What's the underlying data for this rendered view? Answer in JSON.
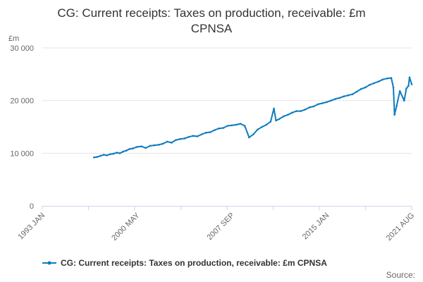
{
  "chart_data": {
    "type": "line",
    "title_lines": [
      "CG: Current receipts: Taxes on production, receivable: £m",
      "CPNSA"
    ],
    "y_unit_label": "£m",
    "yticks": [
      0,
      10000,
      20000,
      30000
    ],
    "ytick_labels": [
      "0",
      "10 000",
      "20 000",
      "30 000"
    ],
    "ylim": [
      0,
      30000
    ],
    "xticks": [
      "1993 JAN",
      "2000 MAY",
      "2007 SEP",
      "2015 JAN",
      "2021 AUG"
    ],
    "x_range": [
      "1993 JAN",
      "2021 AUG"
    ],
    "grid": "horizontal",
    "legend_position": "bottom",
    "source_label": "Source:",
    "color": "#0e7bbf",
    "series": [
      {
        "name": "CG: Current receipts: Taxes on production, receivable: £m CPNSA",
        "points": [
          [
            "1997 JAN",
            9200
          ],
          [
            "1997 APR",
            9300
          ],
          [
            "1997 JUL",
            9500
          ],
          [
            "1997 OCT",
            9700
          ],
          [
            "1998 JAN",
            9600
          ],
          [
            "1998 APR",
            9800
          ],
          [
            "1998 JUL",
            9900
          ],
          [
            "1998 OCT",
            10100
          ],
          [
            "1999 JAN",
            10000
          ],
          [
            "1999 APR",
            10300
          ],
          [
            "1999 JUL",
            10500
          ],
          [
            "1999 OCT",
            10800
          ],
          [
            "2000 JAN",
            10900
          ],
          [
            "2000 MAY",
            11200
          ],
          [
            "2000 SEP",
            11300
          ],
          [
            "2001 JAN",
            11000
          ],
          [
            "2001 MAY",
            11400
          ],
          [
            "2001 SEP",
            11500
          ],
          [
            "2002 JAN",
            11600
          ],
          [
            "2002 MAY",
            11800
          ],
          [
            "2002 SEP",
            12200
          ],
          [
            "2003 JAN",
            12000
          ],
          [
            "2003 MAY",
            12500
          ],
          [
            "2003 SEP",
            12700
          ],
          [
            "2004 JAN",
            12800
          ],
          [
            "2004 MAY",
            13100
          ],
          [
            "2004 SEP",
            13300
          ],
          [
            "2005 JAN",
            13200
          ],
          [
            "2005 MAY",
            13600
          ],
          [
            "2005 SEP",
            13900
          ],
          [
            "2006 JAN",
            14000
          ],
          [
            "2006 MAY",
            14400
          ],
          [
            "2006 SEP",
            14700
          ],
          [
            "2007 JAN",
            14800
          ],
          [
            "2007 MAY",
            15200
          ],
          [
            "2007 SEP",
            15300
          ],
          [
            "2008 JAN",
            15400
          ],
          [
            "2008 MAY",
            15600
          ],
          [
            "2008 SEP",
            15200
          ],
          [
            "2009 JAN",
            13000
          ],
          [
            "2009 MAY",
            13600
          ],
          [
            "2009 SEP",
            14500
          ],
          [
            "2010 JAN",
            15000
          ],
          [
            "2010 MAY",
            15400
          ],
          [
            "2010 SEP",
            16000
          ],
          [
            "2010 DEC",
            18500
          ],
          [
            "2011 FEB",
            16200
          ],
          [
            "2011 MAY",
            16500
          ],
          [
            "2011 SEP",
            17000
          ],
          [
            "2012 JAN",
            17300
          ],
          [
            "2012 MAY",
            17700
          ],
          [
            "2012 SEP",
            18000
          ],
          [
            "2013 JAN",
            18000
          ],
          [
            "2013 MAY",
            18300
          ],
          [
            "2013 SEP",
            18700
          ],
          [
            "2014 JAN",
            18900
          ],
          [
            "2014 MAY",
            19300
          ],
          [
            "2014 SEP",
            19500
          ],
          [
            "2015 JAN",
            19700
          ],
          [
            "2015 MAY",
            20000
          ],
          [
            "2015 SEP",
            20300
          ],
          [
            "2016 JAN",
            20500
          ],
          [
            "2016 MAY",
            20800
          ],
          [
            "2016 SEP",
            21000
          ],
          [
            "2017 JAN",
            21200
          ],
          [
            "2017 MAY",
            21700
          ],
          [
            "2017 SEP",
            22200
          ],
          [
            "2018 JAN",
            22500
          ],
          [
            "2018 MAY",
            23000
          ],
          [
            "2018 SEP",
            23300
          ],
          [
            "2019 JAN",
            23600
          ],
          [
            "2019 MAY",
            24000
          ],
          [
            "2019 SEP",
            24200
          ],
          [
            "2020 JAN",
            24300
          ],
          [
            "2020 MAR",
            22500
          ],
          [
            "2020 APR",
            17300
          ],
          [
            "2020 JUN",
            19000
          ],
          [
            "2020 SEP",
            21800
          ],
          [
            "2021 JAN",
            20000
          ],
          [
            "2021 MAR",
            22300
          ],
          [
            "2021 MAY",
            22800
          ],
          [
            "2021 JUN",
            24400
          ],
          [
            "2021 AUG",
            23100
          ]
        ]
      }
    ]
  }
}
